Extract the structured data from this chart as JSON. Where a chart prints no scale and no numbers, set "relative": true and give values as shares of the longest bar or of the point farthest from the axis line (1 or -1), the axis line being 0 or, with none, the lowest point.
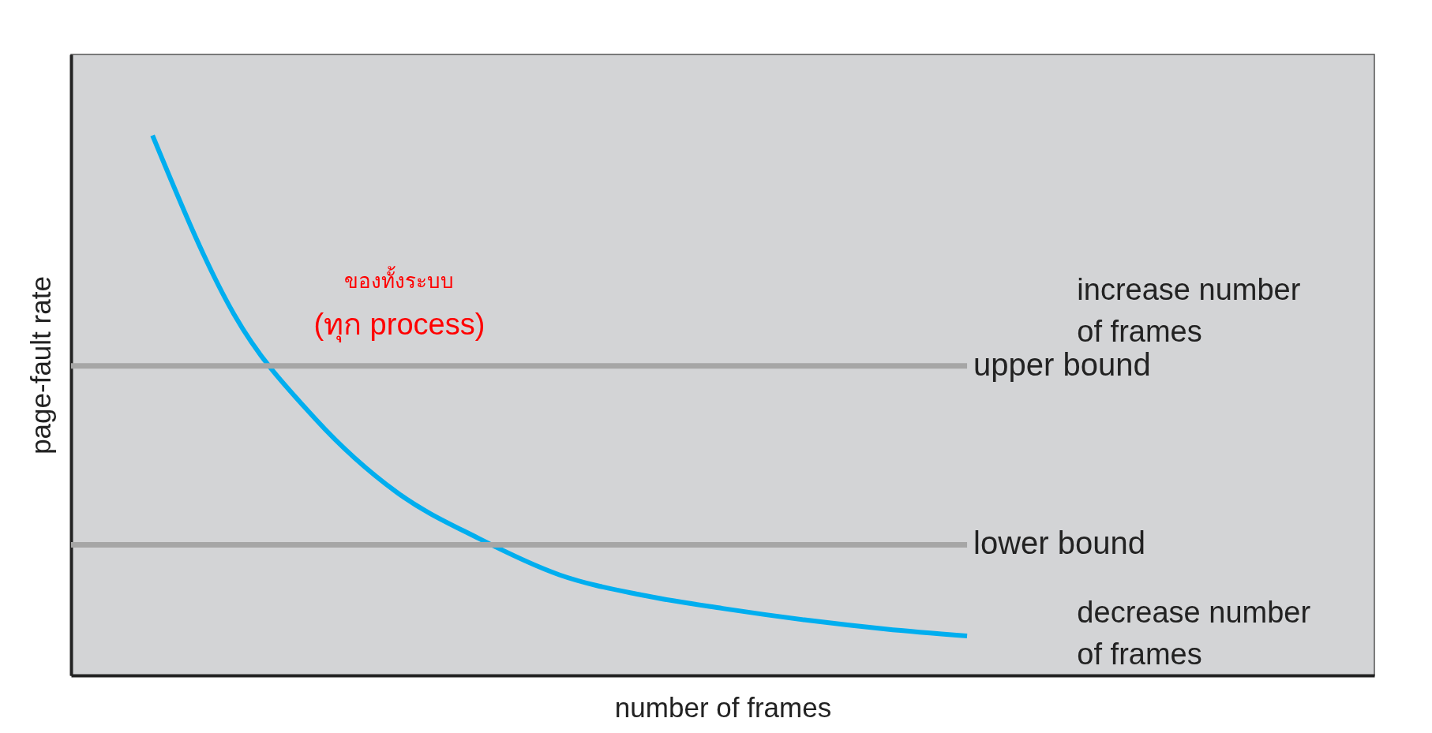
{
  "chart_data": {
    "type": "line",
    "relative": true,
    "xlabel": "number of frames",
    "ylabel": "page-fault rate",
    "categories": [
      null,
      null,
      null,
      null,
      null,
      null,
      null,
      null,
      null,
      null,
      null,
      null,
      null,
      null,
      null,
      null,
      null
    ],
    "series": [
      {
        "color": "#00aeef",
        "values": [
          null,
          1.0,
          0.669,
          0.475,
          0.339,
          0.254,
          0.186,
          0.149,
          0.124,
          0.103,
          0.086,
          0.073,
          null,
          null,
          null,
          null,
          null
        ]
      }
    ],
    "ref_lines": [
      {
        "axis": "y",
        "value": 0.573,
        "label": "upper bound",
        "color": "#a6a6a6"
      },
      {
        "axis": "y",
        "value": 0.242,
        "label": "lower bound",
        "color": "#a6a6a6"
      }
    ],
    "annotations": [
      "increase number of frames",
      "decrease number of frames",
      "ของทั้งระบบ",
      "(ทุก process)"
    ],
    "grid": false
  }
}
